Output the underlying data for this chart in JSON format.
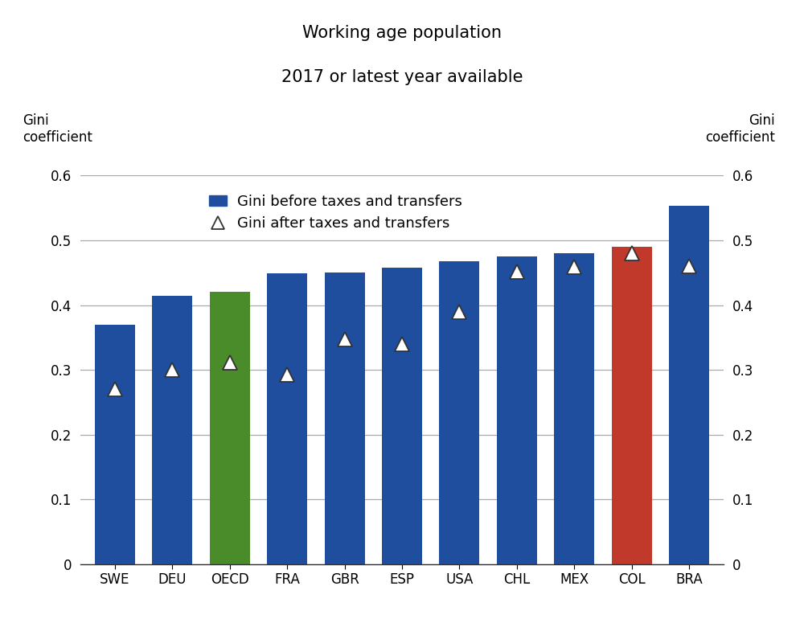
{
  "categories": [
    "SWE",
    "DEU",
    "OECD",
    "FRA",
    "GBR",
    "ESP",
    "USA",
    "CHL",
    "MEX",
    "COL",
    "BRA"
  ],
  "gini_before": [
    0.37,
    0.415,
    0.42,
    0.449,
    0.45,
    0.458,
    0.468,
    0.475,
    0.48,
    0.49,
    0.553
  ],
  "gini_after": [
    0.27,
    0.3,
    0.312,
    0.293,
    0.347,
    0.34,
    0.39,
    0.452,
    0.459,
    0.48,
    0.46
  ],
  "bar_colors": [
    "#1f4e9e",
    "#1f4e9e",
    "#4a8c2a",
    "#1f4e9e",
    "#1f4e9e",
    "#1f4e9e",
    "#1f4e9e",
    "#1f4e9e",
    "#1f4e9e",
    "#c0392b",
    "#1f4e9e"
  ],
  "title_line1": "Working age population",
  "title_line2": "2017 or latest year available",
  "ylabel_left_line1": "Gini",
  "ylabel_left_line2": "coefficient",
  "ylabel_right_line1": "Gini",
  "ylabel_right_line2": "coefficient",
  "legend_bar_label": "Gini before taxes and transfers",
  "legend_marker_label": "Gini after taxes and transfers",
  "ylim": [
    0,
    0.6
  ],
  "yticks": [
    0,
    0.1,
    0.2,
    0.3,
    0.4,
    0.5,
    0.6
  ],
  "bar_width": 0.7,
  "triangle_color": "white",
  "triangle_edge_color": "#333333",
  "grid_color": "#aaaaaa",
  "background_color": "#ffffff",
  "title_fontsize": 15,
  "axis_label_fontsize": 12,
  "tick_fontsize": 12,
  "legend_fontsize": 13
}
